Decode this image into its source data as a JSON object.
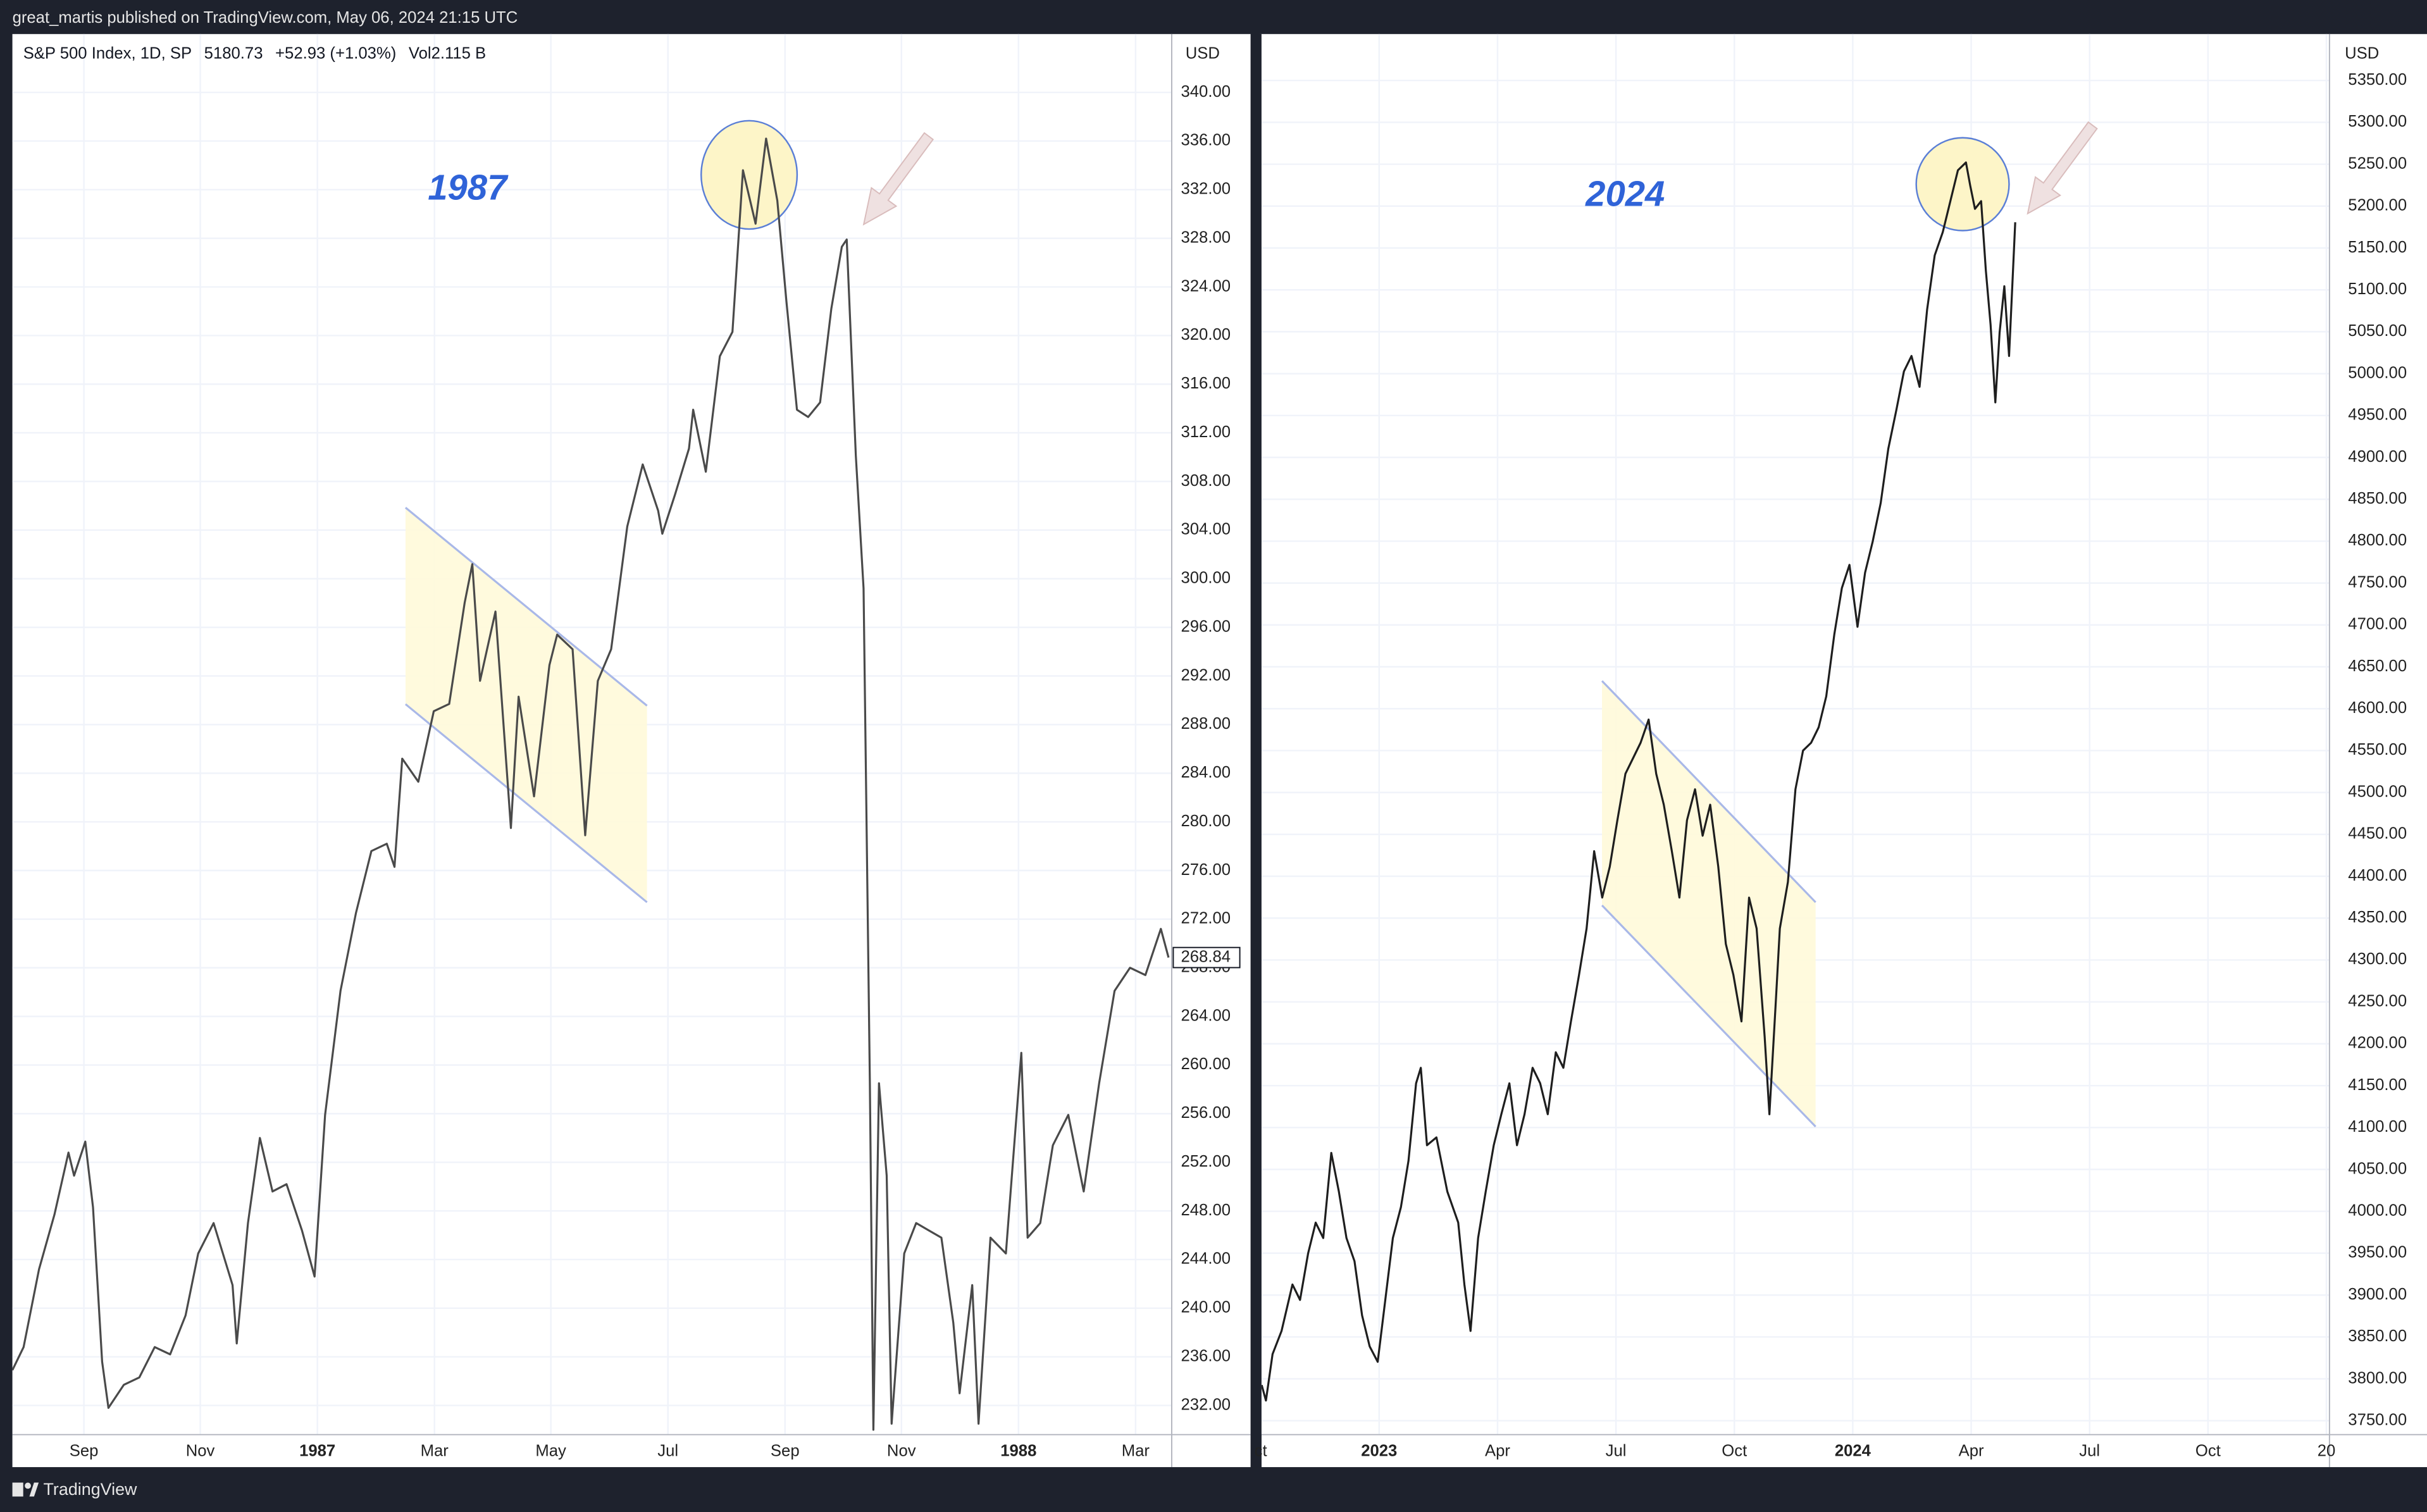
{
  "page": {
    "publish_note": "great_martis published on TradingView.com, May 06, 2024 21:15 UTC",
    "footer": "TradingView"
  },
  "chart_data": [
    {
      "type": "line",
      "legend": {
        "symbol": "S&P 500 Index, 1D, SP",
        "last": 5180.73,
        "change": "+52.93 (+1.03%)",
        "volume": "Vol2.115 B"
      },
      "annotation": "1987",
      "currency": "USD",
      "last_value": 268.84,
      "color": "#4a4a4a",
      "grid": true,
      "xlim": [
        1986.565,
        1988.2185
      ],
      "ylim": [
        229.6,
        344.8
      ],
      "xticks": [
        {
          "value": 1986.667,
          "label": "Sep"
        },
        {
          "value": 1986.833,
          "label": "Nov"
        },
        1987,
        {
          "value": 1987.167,
          "label": "Mar"
        },
        {
          "value": 1987.333,
          "label": "May"
        },
        {
          "value": 1987.5,
          "label": "Jul"
        },
        {
          "value": 1987.667,
          "label": "Sep"
        },
        {
          "value": 1987.833,
          "label": "Nov"
        },
        1988,
        {
          "value": 1988.167,
          "label": "Mar"
        }
      ],
      "yticks": [
        {
          "value": 232,
          "label": "232.00"
        },
        {
          "value": 236,
          "label": "236.00"
        },
        {
          "value": 240,
          "label": "240.00"
        },
        {
          "value": 244,
          "label": "244.00"
        },
        {
          "value": 248,
          "label": "248.00"
        },
        {
          "value": 252,
          "label": "252.00"
        },
        {
          "value": 256,
          "label": "256.00"
        },
        {
          "value": 260,
          "label": "260.00"
        },
        {
          "value": 264,
          "label": "264.00"
        },
        {
          "value": 268,
          "label": "268.00"
        },
        {
          "value": 272,
          "label": "272.00"
        },
        {
          "value": 276,
          "label": "276.00"
        },
        {
          "value": 280,
          "label": "280.00"
        },
        {
          "value": 284,
          "label": "284.00"
        },
        {
          "value": 288,
          "label": "288.00"
        },
        {
          "value": 292,
          "label": "292.00"
        },
        {
          "value": 296,
          "label": "296.00"
        },
        {
          "value": 300,
          "label": "300.00"
        },
        {
          "value": 304,
          "label": "304.00"
        },
        {
          "value": 308,
          "label": "308.00"
        },
        {
          "value": 312,
          "label": "312.00"
        },
        {
          "value": 316,
          "label": "316.00"
        },
        {
          "value": 320,
          "label": "320.00"
        },
        {
          "value": 324,
          "label": "324.00"
        },
        {
          "value": 328,
          "label": "328.00"
        },
        {
          "value": 332,
          "label": "332.00"
        },
        {
          "value": 336,
          "label": "336.00"
        },
        {
          "value": 340,
          "label": "340.00"
        }
      ],
      "x": [
        1986.565,
        1986.581,
        1986.603,
        1986.625,
        1986.645,
        1986.653,
        1986.669,
        1986.68,
        1986.693,
        1986.702,
        1986.724,
        1986.746,
        1986.768,
        1986.79,
        1986.812,
        1986.83,
        1986.852,
        1986.879,
        1986.885,
        1986.901,
        1986.918,
        1986.936,
        1986.956,
        1986.978,
        1986.996,
        1987.011,
        1987.033,
        1987.055,
        1987.077,
        1987.099,
        1987.11,
        1987.121,
        1987.144,
        1987.166,
        1987.188,
        1987.21,
        1987.221,
        1987.232,
        1987.254,
        1987.276,
        1987.287,
        1987.309,
        1987.331,
        1987.342,
        1987.364,
        1987.382,
        1987.4,
        1987.419,
        1987.442,
        1987.464,
        1987.486,
        1987.492,
        1987.51,
        1987.53,
        1987.536,
        1987.554,
        1987.574,
        1987.592,
        1987.607,
        1987.625,
        1987.64,
        1987.656,
        1987.669,
        1987.684,
        1987.7,
        1987.717,
        1987.733,
        1987.748,
        1987.755,
        1987.768,
        1987.779,
        1987.788,
        1987.793,
        1987.801,
        1987.812,
        1987.819,
        1987.837,
        1987.854,
        1987.872,
        1987.89,
        1987.907,
        1987.916,
        1987.934,
        1987.943,
        1987.96,
        1987.982,
        1988.004,
        1988.013,
        1988.031,
        1988.049,
        1988.071,
        1988.093,
        1988.115,
        1988.137,
        1988.159,
        1988.181,
        1988.203,
        1988.214
      ],
      "values": [
        234.9,
        236.8,
        243.2,
        247.7,
        252.8,
        250.9,
        253.7,
        248.3,
        235.6,
        231.8,
        233.7,
        234.3,
        236.8,
        236.2,
        239.4,
        244.5,
        247.0,
        241.9,
        237.1,
        247.0,
        254.0,
        249.6,
        250.2,
        246.4,
        242.6,
        255.9,
        266.1,
        272.5,
        277.6,
        278.2,
        276.3,
        285.2,
        283.3,
        289.1,
        289.7,
        298.0,
        301.2,
        291.6,
        297.3,
        279.5,
        290.3,
        282.1,
        292.9,
        295.4,
        294.2,
        278.9,
        291.6,
        294.2,
        304.3,
        309.4,
        305.6,
        303.7,
        306.9,
        310.7,
        313.9,
        308.8,
        318.3,
        320.3,
        333.6,
        329.2,
        336.2,
        331.1,
        322.8,
        313.9,
        313.3,
        314.5,
        322.2,
        327.3,
        327.9,
        310.1,
        299.2,
        258.5,
        230.0,
        258.5,
        250.9,
        230.5,
        244.5,
        247.0,
        246.4,
        245.8,
        238.8,
        233.0,
        241.9,
        230.5,
        245.8,
        244.5,
        261.0,
        245.8,
        247.0,
        253.4,
        255.9,
        249.6,
        258.5,
        266.1,
        268.0,
        267.4,
        271.2,
        268.84
      ]
    },
    {
      "type": "line",
      "annotation": "2024",
      "currency": "USD",
      "color": "#1e1e1e",
      "grid": true,
      "xlim": [
        2022.7516,
        2025.0065
      ],
      "ylim": [
        3733.4,
        5405.4
      ],
      "xticks": [
        {
          "value": 2022.75,
          "label": "ct"
        },
        2023,
        {
          "value": 2023.25,
          "label": "Apr"
        },
        {
          "value": 2023.5,
          "label": "Jul"
        },
        {
          "value": 2023.75,
          "label": "Oct"
        },
        2024,
        {
          "value": 2024.25,
          "label": "Apr"
        },
        {
          "value": 2024.5,
          "label": "Jul"
        },
        {
          "value": 2024.75,
          "label": "Oct"
        },
        {
          "value": 2025,
          "label": "20"
        }
      ],
      "yticks": [
        {
          "value": 3750,
          "label": "3750.00"
        },
        {
          "value": 3800,
          "label": "3800.00"
        },
        {
          "value": 3850,
          "label": "3850.00"
        },
        {
          "value": 3900,
          "label": "3900.00"
        },
        {
          "value": 3950,
          "label": "3950.00"
        },
        {
          "value": 4000,
          "label": "4000.00"
        },
        {
          "value": 4050,
          "label": "4050.00"
        },
        {
          "value": 4100,
          "label": "4100.00"
        },
        {
          "value": 4150,
          "label": "4150.00"
        },
        {
          "value": 4200,
          "label": "4200.00"
        },
        {
          "value": 4250,
          "label": "4250.00"
        },
        {
          "value": 4300,
          "label": "4300.00"
        },
        {
          "value": 4350,
          "label": "4350.00"
        },
        {
          "value": 4400,
          "label": "4400.00"
        },
        {
          "value": 4450,
          "label": "4450.00"
        },
        {
          "value": 4500,
          "label": "4500.00"
        },
        {
          "value": 4550,
          "label": "4550.00"
        },
        {
          "value": 4600,
          "label": "4600.00"
        },
        {
          "value": 4650,
          "label": "4650.00"
        },
        {
          "value": 4700,
          "label": "4700.00"
        },
        {
          "value": 4750,
          "label": "4750.00"
        },
        {
          "value": 4800,
          "label": "4800.00"
        },
        {
          "value": 4850,
          "label": "4850.00"
        },
        {
          "value": 4900,
          "label": "4900.00"
        },
        {
          "value": 4950,
          "label": "4950.00"
        },
        {
          "value": 5000,
          "label": "5000.00"
        },
        {
          "value": 5050,
          "label": "5050.00"
        },
        {
          "value": 5100,
          "label": "5100.00"
        },
        {
          "value": 5150,
          "label": "5150.00"
        },
        {
          "value": 5200,
          "label": "5200.00"
        },
        {
          "value": 5250,
          "label": "5250.00"
        },
        {
          "value": 5300,
          "label": "5300.00"
        },
        {
          "value": 5350,
          "label": "5350.00"
        }
      ],
      "x": [
        2022.752,
        2022.761,
        2022.775,
        2022.794,
        2022.817,
        2022.833,
        2022.85,
        2022.866,
        2022.882,
        2022.899,
        2022.915,
        2022.931,
        2022.948,
        2022.964,
        2022.98,
        2022.997,
        2023.013,
        2023.029,
        2023.046,
        2023.062,
        2023.078,
        2023.088,
        2023.101,
        2023.121,
        2023.144,
        2023.167,
        2023.18,
        2023.193,
        2023.209,
        2023.225,
        2023.242,
        2023.258,
        2023.275,
        2023.291,
        2023.307,
        2023.324,
        2023.34,
        2023.356,
        2023.373,
        2023.389,
        2023.405,
        2023.422,
        2023.438,
        2023.454,
        2023.471,
        2023.487,
        2023.503,
        2023.52,
        2023.536,
        2023.552,
        2023.569,
        2023.585,
        2023.601,
        2023.618,
        2023.634,
        2023.65,
        2023.667,
        2023.683,
        2023.699,
        2023.716,
        2023.732,
        2023.748,
        2023.765,
        2023.781,
        2023.797,
        2023.814,
        2023.824,
        2023.837,
        2023.846,
        2023.863,
        2023.879,
        2023.895,
        2023.912,
        2023.928,
        2023.944,
        2023.961,
        2023.977,
        2023.993,
        2024.01,
        2024.026,
        2024.042,
        2024.059,
        2024.075,
        2024.092,
        2024.108,
        2024.124,
        2024.141,
        2024.157,
        2024.173,
        2024.19,
        2024.206,
        2024.222,
        2024.239,
        2024.248,
        2024.258,
        2024.271,
        2024.281,
        2024.291,
        2024.301,
        2024.31,
        2024.32,
        2024.33,
        2024.343
      ],
      "values": [
        3792.6,
        3774.1,
        3829.5,
        3857.2,
        3912.6,
        3894.2,
        3949.6,
        3986.5,
        3968.1,
        4069.7,
        4023.5,
        3968.1,
        3940.4,
        3875.7,
        3838.7,
        3820.3,
        3894.2,
        3968.1,
        4005.0,
        4060.4,
        4152.8,
        4171.3,
        4078.9,
        4088.2,
        4023.5,
        3986.5,
        3912.6,
        3857.2,
        3968.1,
        4023.5,
        4078.9,
        4115.9,
        4152.8,
        4078.9,
        4115.9,
        4171.3,
        4152.8,
        4115.9,
        4189.8,
        4171.3,
        4226.7,
        4282.1,
        4337.6,
        4429.9,
        4374.5,
        4411.5,
        4466.9,
        4522.3,
        4540.8,
        4559.3,
        4587.0,
        4522.3,
        4485.4,
        4429.9,
        4374.5,
        4466.9,
        4503.8,
        4448.4,
        4485.4,
        4411.5,
        4319.1,
        4282.1,
        4226.7,
        4374.5,
        4337.6,
        4208.2,
        4115.9,
        4245.2,
        4337.6,
        4393.0,
        4503.8,
        4550.0,
        4559.3,
        4577.8,
        4614.7,
        4688.6,
        4744.0,
        4771.7,
        4697.8,
        4762.5,
        4799.4,
        4845.6,
        4910.3,
        4956.5,
        5002.7,
        5021.1,
        4984.2,
        5076.6,
        5141.2,
        5168.9,
        5205.9,
        5242.8,
        5252.1,
        5224.4,
        5196.7,
        5205.9,
        5122.8,
        5058.1,
        4965.7,
        5048.9,
        5104.3,
        5021.1,
        5180.73
      ]
    }
  ]
}
